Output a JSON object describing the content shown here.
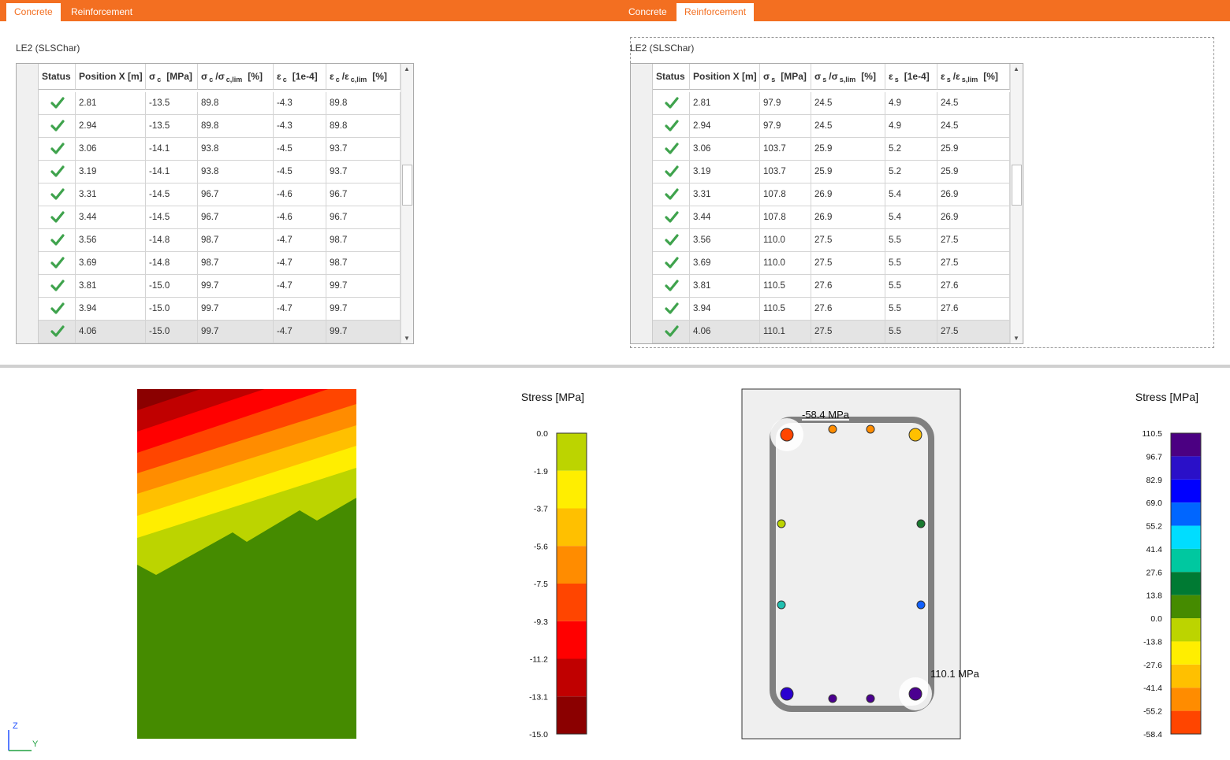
{
  "left_panel": {
    "tabs": [
      "Concrete",
      "Reinforcement"
    ],
    "active_tab": 0,
    "title": "LE2 (SLSChar)",
    "table": {
      "header": [
        [
          {
            "text": "Status"
          }
        ],
        [
          {
            "text": "Position X [m]"
          }
        ],
        [
          {
            "text": "σ"
          },
          {
            "sub": "c"
          },
          {
            "text": "[MPa]"
          }
        ],
        [
          {
            "text": "σ"
          },
          {
            "sub": "c"
          },
          {
            "text": "/σ"
          },
          {
            "sub": "c,lim"
          },
          {
            "text": "[%]"
          }
        ],
        [
          {
            "text": "ε"
          },
          {
            "sub": "c"
          },
          {
            "text": "[1e-4]"
          }
        ],
        [
          {
            "text": "ε"
          },
          {
            "sub": "c"
          },
          {
            "text": "/ε"
          },
          {
            "sub": "c,lim"
          },
          {
            "text": "[%]"
          }
        ]
      ],
      "rows": [
        [
          "2.81",
          "-13.5",
          "89.8",
          "-4.3",
          "89.8"
        ],
        [
          "2.94",
          "-13.5",
          "89.8",
          "-4.3",
          "89.8"
        ],
        [
          "3.06",
          "-14.1",
          "93.8",
          "-4.5",
          "93.7"
        ],
        [
          "3.19",
          "-14.1",
          "93.8",
          "-4.5",
          "93.7"
        ],
        [
          "3.31",
          "-14.5",
          "96.7",
          "-4.6",
          "96.7"
        ],
        [
          "3.44",
          "-14.5",
          "96.7",
          "-4.6",
          "96.7"
        ],
        [
          "3.56",
          "-14.8",
          "98.7",
          "-4.7",
          "98.7"
        ],
        [
          "3.69",
          "-14.8",
          "98.7",
          "-4.7",
          "98.7"
        ],
        [
          "3.81",
          "-15.0",
          "99.7",
          "-4.7",
          "99.7"
        ],
        [
          "3.94",
          "-15.0",
          "99.7",
          "-4.7",
          "99.7"
        ],
        [
          "4.06",
          "-15.0",
          "99.7",
          "-4.7",
          "99.7"
        ]
      ]
    },
    "legend": {
      "title": "Stress [MPa]",
      "labels": [
        "0.0",
        "-1.9",
        "-3.7",
        "-5.6",
        "-7.5",
        "-9.3",
        "-11.2",
        "-13.1",
        "-15.0"
      ],
      "colors": [
        "#bcd400",
        "#ffee00",
        "#ffc000",
        "#ff8c00",
        "#ff4500",
        "#ff0000",
        "#c00000",
        "#8b0000"
      ]
    }
  },
  "right_panel": {
    "tabs": [
      "Concrete",
      "Reinforcement"
    ],
    "active_tab": 1,
    "title": "LE2 (SLSChar)",
    "table": {
      "header": [
        [
          {
            "text": "Status"
          }
        ],
        [
          {
            "text": "Position X [m]"
          }
        ],
        [
          {
            "text": "σ"
          },
          {
            "sub": "s"
          },
          {
            "text": "[MPa]"
          }
        ],
        [
          {
            "text": "σ"
          },
          {
            "sub": "s"
          },
          {
            "text": "/σ"
          },
          {
            "sub": "s,lim"
          },
          {
            "text": "[%]"
          }
        ],
        [
          {
            "text": "ε"
          },
          {
            "sub": "s"
          },
          {
            "text": "[1e-4]"
          }
        ],
        [
          {
            "text": "ε"
          },
          {
            "sub": "s"
          },
          {
            "text": "/ε"
          },
          {
            "sub": "s,lim"
          },
          {
            "text": "[%]"
          }
        ]
      ],
      "rows": [
        [
          "2.81",
          "97.9",
          "24.5",
          "4.9",
          "24.5"
        ],
        [
          "2.94",
          "97.9",
          "24.5",
          "4.9",
          "24.5"
        ],
        [
          "3.06",
          "103.7",
          "25.9",
          "5.2",
          "25.9"
        ],
        [
          "3.19",
          "103.7",
          "25.9",
          "5.2",
          "25.9"
        ],
        [
          "3.31",
          "107.8",
          "26.9",
          "5.4",
          "26.9"
        ],
        [
          "3.44",
          "107.8",
          "26.9",
          "5.4",
          "26.9"
        ],
        [
          "3.56",
          "110.0",
          "27.5",
          "5.5",
          "27.5"
        ],
        [
          "3.69",
          "110.0",
          "27.5",
          "5.5",
          "27.5"
        ],
        [
          "3.81",
          "110.5",
          "27.6",
          "5.5",
          "27.6"
        ],
        [
          "3.94",
          "110.5",
          "27.6",
          "5.5",
          "27.6"
        ],
        [
          "4.06",
          "110.1",
          "27.5",
          "5.5",
          "27.5"
        ]
      ]
    },
    "annotations": [
      "-58.4 MPa",
      "110.1 MPa"
    ],
    "legend": {
      "title": "Stress [MPa]",
      "labels": [
        "110.5",
        "96.7",
        "82.9",
        "69.0",
        "55.2",
        "41.4",
        "27.6",
        "13.8",
        "0.0",
        "-13.8",
        "-27.6",
        "-41.4",
        "-55.2",
        "-58.4"
      ],
      "colors": [
        "#4b0082",
        "#2a10c8",
        "#0000ff",
        "#0066ff",
        "#00ddff",
        "#00c8a0",
        "#007a33",
        "#458b00",
        "#bcd400",
        "#ffee00",
        "#ffc000",
        "#ff8c00",
        "#ff4500"
      ]
    }
  },
  "axes": {
    "z": "Z",
    "y": "Y"
  }
}
